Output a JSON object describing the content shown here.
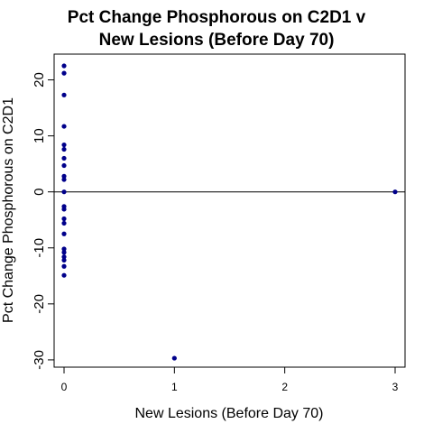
{
  "chart_data": {
    "type": "scatter",
    "title_line1": "Pct Change Phosphorous on C2D1 v",
    "title_line2": "New Lesions (Before Day 70)",
    "xlabel": "New Lesions (Before Day 70)",
    "ylabel": "Pct Change Phosphorous on C2D1",
    "xlim": [
      -0.09,
      3.09
    ],
    "ylim": [
      -31.3,
      24.6
    ],
    "xticks": [
      0,
      1,
      2,
      3
    ],
    "yticks": [
      -30,
      -20,
      -10,
      0,
      10,
      20
    ],
    "hline": 0,
    "point_color": "#00008B",
    "points": [
      {
        "x": 0,
        "y": 22.5
      },
      {
        "x": 0,
        "y": 21.2
      },
      {
        "x": 0,
        "y": 17.3
      },
      {
        "x": 0,
        "y": 11.7
      },
      {
        "x": 0,
        "y": 8.4
      },
      {
        "x": 0,
        "y": 7.6
      },
      {
        "x": 0,
        "y": 6.0
      },
      {
        "x": 0,
        "y": 4.7
      },
      {
        "x": 0,
        "y": 2.8
      },
      {
        "x": 0,
        "y": 2.2
      },
      {
        "x": 0,
        "y": 0.0
      },
      {
        "x": 0,
        "y": -2.6
      },
      {
        "x": 0,
        "y": -3.1
      },
      {
        "x": 0,
        "y": -4.8
      },
      {
        "x": 0,
        "y": -5.6
      },
      {
        "x": 0,
        "y": -7.5
      },
      {
        "x": 0,
        "y": -10.2
      },
      {
        "x": 0,
        "y": -10.8
      },
      {
        "x": 0,
        "y": -11.6
      },
      {
        "x": 0,
        "y": -12.2
      },
      {
        "x": 0,
        "y": -13.3
      },
      {
        "x": 0,
        "y": -14.9
      },
      {
        "x": 1,
        "y": -29.7
      },
      {
        "x": 3,
        "y": 0.0
      }
    ]
  }
}
